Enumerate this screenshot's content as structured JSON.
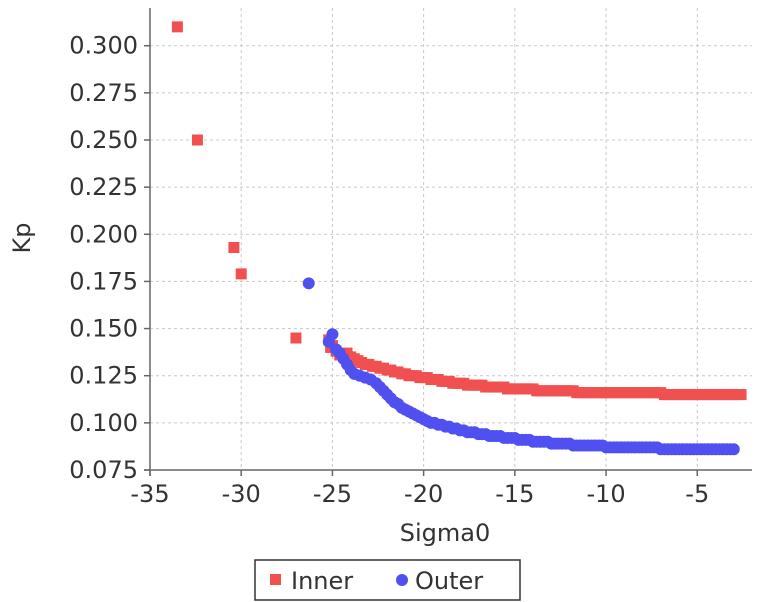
{
  "chart_data": {
    "type": "scatter",
    "title": "",
    "xlabel": "Sigma0",
    "ylabel": "Kp",
    "xlim": [
      -35,
      -2
    ],
    "ylim": [
      0.075,
      0.32
    ],
    "x_ticks": [
      -35,
      -30,
      -25,
      -20,
      -15,
      -10,
      -5
    ],
    "x_tick_labels": [
      "-35",
      "-30",
      "-25",
      "-20",
      "-15",
      "-10",
      "-5"
    ],
    "y_ticks": [
      0.075,
      0.1,
      0.125,
      0.15,
      0.175,
      0.2,
      0.225,
      0.25,
      0.275,
      0.3
    ],
    "y_tick_labels": [
      "0.075",
      "0.100",
      "0.125",
      "0.150",
      "0.175",
      "0.200",
      "0.225",
      "0.250",
      "0.275",
      "0.300"
    ],
    "grid": true,
    "legend_position": "bottom",
    "series": [
      {
        "name": "Inner",
        "color": "#f05050",
        "marker": "square",
        "points": [
          [
            -33.5,
            0.31
          ],
          [
            -32.4,
            0.25
          ],
          [
            -30.4,
            0.193
          ],
          [
            -30.0,
            0.179
          ],
          [
            -27.0,
            0.145
          ],
          [
            -25.2,
            0.144
          ],
          [
            -25.1,
            0.14
          ],
          [
            -25.0,
            0.141
          ],
          [
            -24.8,
            0.138
          ],
          [
            -24.6,
            0.136
          ],
          [
            -24.4,
            0.136
          ],
          [
            -24.2,
            0.137
          ],
          [
            -24.0,
            0.135
          ],
          [
            -23.8,
            0.134
          ],
          [
            -23.6,
            0.133
          ],
          [
            -23.4,
            0.132
          ],
          [
            -23.2,
            0.131
          ],
          [
            -23.0,
            0.131
          ],
          [
            -22.8,
            0.13
          ],
          [
            -22.6,
            0.13
          ],
          [
            -22.4,
            0.129
          ],
          [
            -22.2,
            0.129
          ],
          [
            -22.0,
            0.128
          ],
          [
            -21.8,
            0.128
          ],
          [
            -21.6,
            0.127
          ],
          [
            -21.4,
            0.127
          ],
          [
            -21.2,
            0.126
          ],
          [
            -21.0,
            0.126
          ],
          [
            -20.8,
            0.125
          ],
          [
            -20.6,
            0.125
          ],
          [
            -20.4,
            0.125
          ],
          [
            -20.2,
            0.124
          ],
          [
            -20.0,
            0.124
          ],
          [
            -19.8,
            0.124
          ],
          [
            -19.6,
            0.123
          ],
          [
            -19.4,
            0.123
          ],
          [
            -19.2,
            0.123
          ],
          [
            -19.0,
            0.122
          ],
          [
            -18.8,
            0.122
          ],
          [
            -18.6,
            0.122
          ],
          [
            -18.4,
            0.121
          ],
          [
            -18.2,
            0.121
          ],
          [
            -18.0,
            0.121
          ],
          [
            -17.8,
            0.121
          ],
          [
            -17.6,
            0.12
          ],
          [
            -17.4,
            0.12
          ],
          [
            -17.2,
            0.12
          ],
          [
            -17.0,
            0.12
          ],
          [
            -16.8,
            0.12
          ],
          [
            -16.6,
            0.119
          ],
          [
            -16.4,
            0.119
          ],
          [
            -16.2,
            0.119
          ],
          [
            -16.0,
            0.119
          ],
          [
            -15.8,
            0.119
          ],
          [
            -15.6,
            0.119
          ],
          [
            -15.4,
            0.118
          ],
          [
            -15.2,
            0.118
          ],
          [
            -15.0,
            0.118
          ],
          [
            -14.8,
            0.118
          ],
          [
            -14.6,
            0.118
          ],
          [
            -14.4,
            0.118
          ],
          [
            -14.2,
            0.118
          ],
          [
            -14.0,
            0.118
          ],
          [
            -13.8,
            0.117
          ],
          [
            -13.6,
            0.117
          ],
          [
            -13.4,
            0.117
          ],
          [
            -13.2,
            0.117
          ],
          [
            -13.0,
            0.117
          ],
          [
            -12.8,
            0.117
          ],
          [
            -12.6,
            0.117
          ],
          [
            -12.4,
            0.117
          ],
          [
            -12.2,
            0.117
          ],
          [
            -12.0,
            0.117
          ],
          [
            -11.8,
            0.117
          ],
          [
            -11.6,
            0.116
          ],
          [
            -11.4,
            0.116
          ],
          [
            -11.2,
            0.116
          ],
          [
            -11.0,
            0.116
          ],
          [
            -10.8,
            0.116
          ],
          [
            -10.6,
            0.116
          ],
          [
            -10.4,
            0.116
          ],
          [
            -10.2,
            0.116
          ],
          [
            -10.0,
            0.116
          ],
          [
            -9.8,
            0.116
          ],
          [
            -9.6,
            0.116
          ],
          [
            -9.4,
            0.116
          ],
          [
            -9.2,
            0.116
          ],
          [
            -9.0,
            0.116
          ],
          [
            -8.8,
            0.116
          ],
          [
            -8.6,
            0.116
          ],
          [
            -8.4,
            0.116
          ],
          [
            -8.2,
            0.116
          ],
          [
            -8.0,
            0.116
          ],
          [
            -7.8,
            0.116
          ],
          [
            -7.6,
            0.116
          ],
          [
            -7.4,
            0.116
          ],
          [
            -7.2,
            0.116
          ],
          [
            -7.0,
            0.116
          ],
          [
            -6.8,
            0.115
          ],
          [
            -6.6,
            0.115
          ],
          [
            -6.4,
            0.115
          ],
          [
            -6.2,
            0.115
          ],
          [
            -6.0,
            0.115
          ],
          [
            -5.8,
            0.115
          ],
          [
            -5.6,
            0.115
          ],
          [
            -5.4,
            0.115
          ],
          [
            -5.2,
            0.115
          ],
          [
            -5.0,
            0.115
          ],
          [
            -4.8,
            0.115
          ],
          [
            -4.6,
            0.115
          ],
          [
            -4.4,
            0.115
          ],
          [
            -4.2,
            0.115
          ],
          [
            -4.0,
            0.115
          ],
          [
            -3.8,
            0.115
          ],
          [
            -3.6,
            0.115
          ],
          [
            -3.4,
            0.115
          ],
          [
            -3.2,
            0.115
          ],
          [
            -3.0,
            0.115
          ],
          [
            -2.8,
            0.115
          ],
          [
            -2.6,
            0.115
          ]
        ]
      },
      {
        "name": "Outer",
        "color": "#5050f0",
        "marker": "circle",
        "points": [
          [
            -26.3,
            0.174
          ],
          [
            -25.0,
            0.147
          ],
          [
            -25.2,
            0.143
          ],
          [
            -24.8,
            0.139
          ],
          [
            -24.6,
            0.137
          ],
          [
            -24.4,
            0.134
          ],
          [
            -24.2,
            0.131
          ],
          [
            -24.0,
            0.128
          ],
          [
            -23.8,
            0.126
          ],
          [
            -23.5,
            0.125
          ],
          [
            -23.2,
            0.124
          ],
          [
            -22.9,
            0.123
          ],
          [
            -22.6,
            0.121
          ],
          [
            -22.4,
            0.119
          ],
          [
            -22.2,
            0.117
          ],
          [
            -22.0,
            0.115
          ],
          [
            -21.8,
            0.113
          ],
          [
            -21.6,
            0.111
          ],
          [
            -21.4,
            0.11
          ],
          [
            -21.2,
            0.108
          ],
          [
            -21.0,
            0.107
          ],
          [
            -20.8,
            0.106
          ],
          [
            -20.6,
            0.105
          ],
          [
            -20.4,
            0.104
          ],
          [
            -20.2,
            0.103
          ],
          [
            -20.0,
            0.102
          ],
          [
            -19.8,
            0.101
          ],
          [
            -19.6,
            0.1
          ],
          [
            -19.4,
            0.1
          ],
          [
            -19.2,
            0.099
          ],
          [
            -19.0,
            0.099
          ],
          [
            -18.8,
            0.098
          ],
          [
            -18.6,
            0.098
          ],
          [
            -18.4,
            0.097
          ],
          [
            -18.2,
            0.097
          ],
          [
            -18.0,
            0.096
          ],
          [
            -17.8,
            0.096
          ],
          [
            -17.6,
            0.095
          ],
          [
            -17.4,
            0.095
          ],
          [
            -17.2,
            0.095
          ],
          [
            -17.0,
            0.094
          ],
          [
            -16.8,
            0.094
          ],
          [
            -16.6,
            0.094
          ],
          [
            -16.4,
            0.093
          ],
          [
            -16.2,
            0.093
          ],
          [
            -16.0,
            0.093
          ],
          [
            -15.8,
            0.093
          ],
          [
            -15.6,
            0.092
          ],
          [
            -15.4,
            0.092
          ],
          [
            -15.2,
            0.092
          ],
          [
            -15.0,
            0.092
          ],
          [
            -14.8,
            0.091
          ],
          [
            -14.6,
            0.091
          ],
          [
            -14.4,
            0.091
          ],
          [
            -14.2,
            0.091
          ],
          [
            -14.0,
            0.09
          ],
          [
            -13.8,
            0.09
          ],
          [
            -13.6,
            0.09
          ],
          [
            -13.4,
            0.09
          ],
          [
            -13.2,
            0.09
          ],
          [
            -13.0,
            0.089
          ],
          [
            -12.8,
            0.089
          ],
          [
            -12.6,
            0.089
          ],
          [
            -12.4,
            0.089
          ],
          [
            -12.2,
            0.089
          ],
          [
            -12.0,
            0.089
          ],
          [
            -11.8,
            0.088
          ],
          [
            -11.6,
            0.088
          ],
          [
            -11.4,
            0.088
          ],
          [
            -11.2,
            0.088
          ],
          [
            -11.0,
            0.088
          ],
          [
            -10.8,
            0.088
          ],
          [
            -10.6,
            0.088
          ],
          [
            -10.4,
            0.088
          ],
          [
            -10.2,
            0.088
          ],
          [
            -10.0,
            0.087
          ],
          [
            -9.8,
            0.087
          ],
          [
            -9.6,
            0.087
          ],
          [
            -9.4,
            0.087
          ],
          [
            -9.2,
            0.087
          ],
          [
            -9.0,
            0.087
          ],
          [
            -8.8,
            0.087
          ],
          [
            -8.6,
            0.087
          ],
          [
            -8.4,
            0.087
          ],
          [
            -8.2,
            0.087
          ],
          [
            -8.0,
            0.087
          ],
          [
            -7.8,
            0.087
          ],
          [
            -7.6,
            0.087
          ],
          [
            -7.4,
            0.087
          ],
          [
            -7.2,
            0.087
          ],
          [
            -7.0,
            0.086
          ],
          [
            -6.8,
            0.086
          ],
          [
            -6.6,
            0.086
          ],
          [
            -6.4,
            0.086
          ],
          [
            -6.2,
            0.086
          ],
          [
            -6.0,
            0.086
          ],
          [
            -5.8,
            0.086
          ],
          [
            -5.6,
            0.086
          ],
          [
            -5.4,
            0.086
          ],
          [
            -5.2,
            0.086
          ],
          [
            -5.0,
            0.086
          ],
          [
            -4.8,
            0.086
          ],
          [
            -4.6,
            0.086
          ],
          [
            -4.4,
            0.086
          ],
          [
            -4.2,
            0.086
          ],
          [
            -4.0,
            0.086
          ],
          [
            -3.8,
            0.086
          ],
          [
            -3.6,
            0.086
          ],
          [
            -3.4,
            0.086
          ],
          [
            -3.2,
            0.086
          ],
          [
            -3.0,
            0.086
          ]
        ]
      }
    ]
  }
}
